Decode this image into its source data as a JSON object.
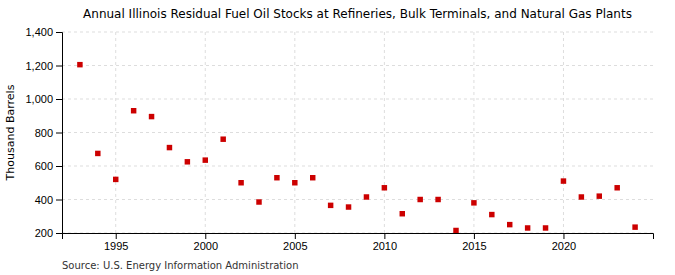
{
  "chart_data": {
    "type": "scatter",
    "title": "Annual Illinois Residual Fuel Oil Stocks at Refineries, Bulk Terminals, and Natural Gas Plants",
    "y_label": "Thousand Barrels",
    "annotation": "Source: U.S. Energy Information Administration",
    "x": [
      1993,
      1994,
      1995,
      1996,
      1997,
      1998,
      1999,
      2000,
      2001,
      2002,
      2003,
      2004,
      2005,
      2006,
      2007,
      2008,
      2009,
      2010,
      2011,
      2012,
      2013,
      2014,
      2015,
      2016,
      2017,
      2018,
      2019,
      2020,
      2021,
      2022,
      2023,
      2024
    ],
    "values": [
      1205,
      675,
      520,
      930,
      895,
      710,
      625,
      635,
      760,
      500,
      385,
      530,
      500,
      530,
      365,
      355,
      415,
      470,
      315,
      400,
      400,
      215,
      380,
      310,
      250,
      230,
      230,
      510,
      415,
      420,
      470,
      235
    ],
    "color": "#cc0000",
    "marker": "square",
    "xlim": [
      1992,
      2025
    ],
    "ylim": [
      200,
      1400
    ],
    "xticks": [
      1995,
      2000,
      2005,
      2010,
      2015,
      2020
    ],
    "yticks": [
      200,
      400,
      600,
      800,
      {
        "value": 1000,
        "label": "1,000"
      },
      {
        "value": 1200,
        "label": "1,200"
      },
      {
        "value": 1400,
        "label": "1,400"
      }
    ],
    "grid": true
  }
}
